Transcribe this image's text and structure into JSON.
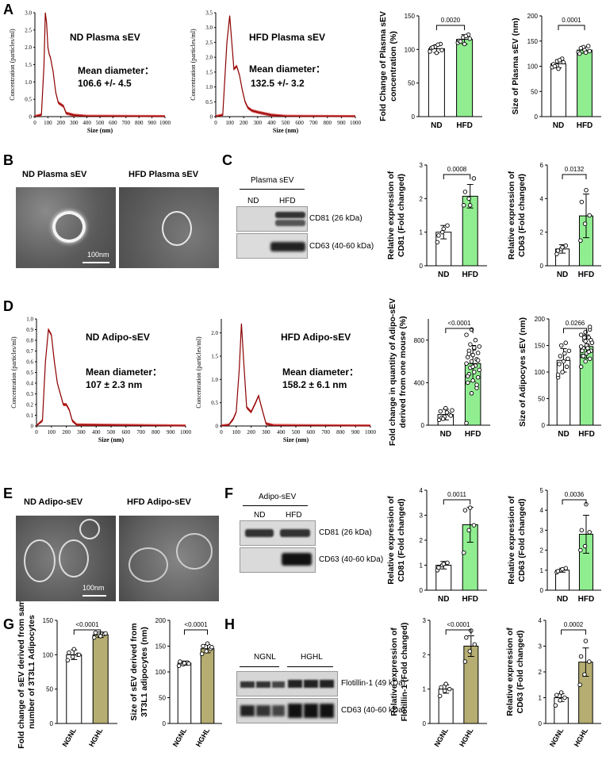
{
  "colors": {
    "green": "#90ee90",
    "olive": "#b5ad72",
    "red_curve": "#8b0000",
    "em_bg": "#6e6e6e"
  },
  "panel_letters": [
    "A",
    "B",
    "C",
    "D",
    "E",
    "F",
    "G",
    "H"
  ],
  "nta": {
    "nd_plasma": {
      "title": "ND Plasma sEV",
      "mean_label": "Mean diameter：",
      "mean_value": "106.6 +/- 4.5",
      "ylabel": "Concentration (particles/ml)",
      "xlabel": "Size  (nm)",
      "yticks": [
        "0",
        "0.5",
        "1.0",
        "1.5",
        "2.0",
        "2.5",
        "3.0"
      ],
      "xticks": [
        "0",
        "100",
        "200",
        "300",
        "400",
        "500",
        "600",
        "700",
        "800",
        "900",
        "1000"
      ],
      "ymax": 3.0,
      "curve": [
        [
          0,
          0
        ],
        [
          50,
          0.05
        ],
        [
          70,
          1.5
        ],
        [
          80,
          3.0
        ],
        [
          90,
          2.7
        ],
        [
          100,
          2.0
        ],
        [
          110,
          1.8
        ],
        [
          120,
          1.7
        ],
        [
          140,
          1.3
        ],
        [
          160,
          0.7
        ],
        [
          180,
          0.4
        ],
        [
          200,
          0.35
        ],
        [
          220,
          0.3
        ],
        [
          240,
          0.1
        ],
        [
          300,
          0.04
        ],
        [
          400,
          0.01
        ],
        [
          1000,
          0
        ]
      ]
    },
    "hfd_plasma": {
      "title": "HFD Plasma sEV",
      "mean_label": "Mean diameter：",
      "mean_value": "132.5 +/- 3.2",
      "ylabel": "Concentration (particles/ml)",
      "xlabel": "Size  (nm)",
      "yticks": [
        "0",
        "0.5",
        "1.0",
        "1.5",
        "2.0",
        "2.5",
        "3.0",
        "3.5"
      ],
      "xticks": [
        "0",
        "100",
        "200",
        "300",
        "400",
        "500",
        "600",
        "700",
        "800",
        "900",
        "1000"
      ],
      "ymax": 3.5,
      "curve": [
        [
          0,
          0
        ],
        [
          50,
          0.05
        ],
        [
          80,
          2.5
        ],
        [
          100,
          3.4
        ],
        [
          115,
          2.5
        ],
        [
          130,
          1.6
        ],
        [
          150,
          1.7
        ],
        [
          170,
          1.4
        ],
        [
          190,
          0.9
        ],
        [
          210,
          0.5
        ],
        [
          230,
          0.3
        ],
        [
          260,
          0.2
        ],
        [
          300,
          0.15
        ],
        [
          350,
          0.1
        ],
        [
          400,
          0.05
        ],
        [
          500,
          0.01
        ],
        [
          1000,
          0
        ]
      ]
    },
    "nd_adipo": {
      "title": "ND Adipo-sEV",
      "mean_label": "Mean diameter：",
      "mean_value": "107 ± 2.3 nm",
      "ylabel": "Concentration (particles/ml)",
      "xlabel": "Size  (nm)",
      "yticks": [
        "0",
        "0.1",
        "0.2",
        "0.3",
        "0.4",
        "0.5",
        "0.6",
        "0.7",
        "0.8",
        "0.9",
        "1.0"
      ],
      "xticks": [
        "0",
        "100",
        "200",
        "300",
        "400",
        "500",
        "600",
        "700",
        "800",
        "900",
        "1000"
      ],
      "ymax": 1.0,
      "curve": [
        [
          0,
          0
        ],
        [
          40,
          0.05
        ],
        [
          60,
          0.6
        ],
        [
          80,
          0.9
        ],
        [
          100,
          0.85
        ],
        [
          120,
          0.6
        ],
        [
          140,
          0.4
        ],
        [
          160,
          0.3
        ],
        [
          180,
          0.2
        ],
        [
          200,
          0.2
        ],
        [
          220,
          0.15
        ],
        [
          240,
          0.05
        ],
        [
          270,
          0.01
        ],
        [
          1000,
          0
        ]
      ]
    },
    "hfd_adipo": {
      "title": "HFD Adipo-sEV",
      "mean_label": "Mean diameter：",
      "mean_value": "158.2 ± 6.1 nm",
      "ylabel": "Concentration (particles/ml)",
      "xlabel": "Size  (nm)",
      "yticks": [
        "0",
        "0.5",
        "1.0",
        "1.5",
        "2.0"
      ],
      "xticks": [
        "0",
        "100",
        "200",
        "300",
        "400",
        "500",
        "600",
        "700",
        "800",
        "900",
        "1000"
      ],
      "ymax": 2.3,
      "curve": [
        [
          0,
          0
        ],
        [
          50,
          0.02
        ],
        [
          80,
          0.15
        ],
        [
          100,
          0.3
        ],
        [
          120,
          1.2
        ],
        [
          135,
          2.2
        ],
        [
          150,
          1.4
        ],
        [
          170,
          0.4
        ],
        [
          200,
          0.3
        ],
        [
          230,
          0.5
        ],
        [
          250,
          0.65
        ],
        [
          270,
          0.4
        ],
        [
          300,
          0.05
        ],
        [
          350,
          0.01
        ],
        [
          1000,
          0
        ]
      ]
    }
  },
  "em": {
    "b_left": "ND Plasma sEV",
    "b_right": "HFD Plasma sEV",
    "b_scale": "100nm",
    "e_left": "ND Adipo-sEV",
    "e_right": "HFD Adipo-sEV",
    "e_scale": "100nm"
  },
  "blots": {
    "c": {
      "header": "Plasma sEV",
      "lanes": [
        "ND",
        "HFD"
      ],
      "bands": [
        "CD81 (26 kDa)",
        "CD63 (40-60 kDa)"
      ]
    },
    "f": {
      "header": "Adipo-sEV",
      "lanes": [
        "ND",
        "HFD"
      ],
      "bands": [
        "CD81 (26 kDa)",
        "CD63 (40-60 kDa)"
      ]
    },
    "h": {
      "groups": [
        "NGNL",
        "HGHL"
      ],
      "bands": [
        "Flotillin-1 (49 kDa)",
        "CD63 (40-60 kDa)"
      ]
    }
  },
  "chart_data": [
    {
      "id": "a1",
      "type": "bar",
      "title": "",
      "categories": [
        "ND",
        "HFD"
      ],
      "values": [
        101,
        115
      ],
      "errors": [
        6,
        7
      ],
      "ylabel": "Fold Change of Plasma sEV concentration (%)",
      "ylim": [
        0,
        150
      ],
      "yticks": [
        "0",
        "50",
        "100",
        "150"
      ],
      "pvalue": "0.0020",
      "fill": "green",
      "points": [
        [
          97,
          104,
          108,
          102,
          95,
          99,
          103,
          107
        ],
        [
          110,
          118,
          122,
          113,
          108,
          116,
          112,
          120
        ]
      ]
    },
    {
      "id": "a2",
      "type": "bar",
      "title": "",
      "categories": [
        "ND",
        "HFD"
      ],
      "values": [
        105,
        132
      ],
      "errors": [
        8,
        6
      ],
      "ylabel": "Size of Plasma sEV (nm)",
      "ylim": [
        0,
        200
      ],
      "yticks": [
        "0",
        "50",
        "100",
        "150",
        "200"
      ],
      "pvalue": "0.0001",
      "fill": "green",
      "points": [
        [
          98,
          110,
          115,
          104,
          95,
          108,
          100,
          112
        ],
        [
          128,
          138,
          140,
          125,
          132,
          130,
          136,
          127
        ]
      ]
    },
    {
      "id": "c1",
      "type": "bar",
      "title": "",
      "categories": [
        "ND",
        "HFD"
      ],
      "values": [
        1.0,
        2.07
      ],
      "errors": [
        0.2,
        0.35
      ],
      "ylabel": "Relative expression of CD81 (Fold changed)",
      "ylim": [
        0,
        3
      ],
      "yticks": [
        "0",
        "1",
        "2",
        "3"
      ],
      "pvalue": "0.0008",
      "fill": "green",
      "points": [
        [
          0.7,
          1.0,
          1.2,
          0.9,
          1.1
        ],
        [
          1.8,
          2.0,
          2.6,
          2.2,
          1.8
        ]
      ]
    },
    {
      "id": "c2",
      "type": "bar",
      "title": "",
      "categories": [
        "ND",
        "HFD"
      ],
      "values": [
        1.0,
        2.97
      ],
      "errors": [
        0.25,
        1.3
      ],
      "ylabel": "Relative expression of CD63 (Fold changed)",
      "ylim": [
        0,
        6
      ],
      "yticks": [
        "0",
        "2",
        "4",
        "6"
      ],
      "pvalue": "0.0132",
      "fill": "green",
      "points": [
        [
          0.7,
          1.0,
          1.2,
          0.9,
          1.1
        ],
        [
          1.5,
          2.5,
          3.0,
          3.8,
          4.5
        ]
      ]
    },
    {
      "id": "d1",
      "type": "bar",
      "title": "",
      "categories": [
        "ND",
        "HFD"
      ],
      "values": [
        100,
        580
      ],
      "errors": [
        50,
        170
      ],
      "ylabel": "Fold change in quantity of Adipo-sEV derived from one mouse (%)",
      "ylim": [
        0,
        1000
      ],
      "yticks": [
        "0",
        "400",
        "800"
      ],
      "pvalue": "<0.0001",
      "fill": "green",
      "points": [
        [
          50,
          80,
          100,
          130,
          160,
          90,
          70,
          120,
          140,
          60
        ],
        [
          20,
          300,
          350,
          400,
          420,
          450,
          480,
          500,
          520,
          540,
          560,
          580,
          600,
          620,
          640,
          660,
          680,
          700,
          720,
          740,
          760,
          800,
          850,
          900,
          380,
          460,
          550,
          610,
          670,
          730
        ]
      ]
    },
    {
      "id": "d2",
      "type": "bar",
      "title": "",
      "categories": [
        "ND",
        "HFD"
      ],
      "values": [
        122,
        148
      ],
      "errors": [
        22,
        22
      ],
      "ylabel": "Size of Adipocyes sEV  (nm)",
      "ylim": [
        0,
        200
      ],
      "yticks": [
        "0",
        "50",
        "100",
        "150",
        "200"
      ],
      "pvalue": "0.0266",
      "fill": "green",
      "points": [
        [
          90,
          100,
          110,
          115,
          120,
          125,
          130,
          135,
          140,
          150,
          155,
          95
        ],
        [
          110,
          120,
          125,
          130,
          135,
          140,
          145,
          150,
          155,
          160,
          165,
          170,
          175,
          180,
          140,
          150,
          160,
          130,
          145,
          155,
          165,
          138,
          148,
          158,
          185
        ]
      ]
    },
    {
      "id": "f1",
      "type": "bar",
      "title": "",
      "categories": [
        "ND",
        "HFD"
      ],
      "values": [
        1.0,
        2.62
      ],
      "errors": [
        0.15,
        0.7
      ],
      "ylabel": "Relative expression of CD81 (Fold changed)",
      "ylim": [
        0,
        4
      ],
      "yticks": [
        "0",
        "1",
        "2",
        "3",
        "4"
      ],
      "pvalue": "0.0011",
      "fill": "green",
      "points": [
        [
          0.8,
          1.0,
          1.1,
          0.9,
          1.05
        ],
        [
          1.5,
          2.4,
          2.6,
          3.2,
          3.3
        ]
      ]
    },
    {
      "id": "f2",
      "type": "bar",
      "title": "",
      "categories": [
        "ND",
        "HFD"
      ],
      "values": [
        1.0,
        2.8
      ],
      "errors": [
        0.1,
        0.95
      ],
      "ylabel": "Relative expression of CD63 (Fold changed)",
      "ylim": [
        0,
        5
      ],
      "yticks": [
        "0",
        "1",
        "2",
        "3",
        "4",
        "5"
      ],
      "pvalue": "0.0036",
      "fill": "green",
      "points": [
        [
          0.9,
          1.0,
          1.1,
          0.95,
          1.05
        ],
        [
          2.0,
          2.2,
          2.9,
          3.0,
          4.3
        ]
      ]
    },
    {
      "id": "g1",
      "type": "bar",
      "title": "",
      "categories": [
        "NGNL",
        "HGHL"
      ],
      "values": [
        100,
        129
      ],
      "errors": [
        7,
        4
      ],
      "ylabel": "Fold change of sEV derived from same number of 3T3L1 Adipocytes",
      "ylim": [
        0,
        150
      ],
      "yticks": [
        "0",
        "50",
        "100",
        "150"
      ],
      "pvalue": "<0.0001",
      "fill": "olive",
      "points": [
        [
          92,
          97,
          100,
          103,
          108,
          100
        ],
        [
          125,
          128,
          130,
          132,
          127,
          131
        ]
      ]
    },
    {
      "id": "g2",
      "type": "bar",
      "title": "",
      "categories": [
        "NGNL",
        "HGHL"
      ],
      "values": [
        117,
        145
      ],
      "errors": [
        4,
        8
      ],
      "ylabel": "Size of sEV derived from 3T3L1 adipocytes (nm)",
      "ylim": [
        0,
        200
      ],
      "yticks": [
        "0",
        "50",
        "100",
        "150",
        "200"
      ],
      "pvalue": "<0.0001",
      "fill": "olive",
      "points": [
        [
          112,
          115,
          118,
          120,
          117,
          116
        ],
        [
          135,
          140,
          145,
          150,
          155,
          148
        ]
      ]
    },
    {
      "id": "h1",
      "type": "bar",
      "title": "",
      "categories": [
        "NGNL",
        "HGHL"
      ],
      "values": [
        1.0,
        2.25
      ],
      "errors": [
        0.12,
        0.3
      ],
      "ylabel": "Relative expression of Flotillin-1 (Fold changed)",
      "ylim": [
        0,
        3
      ],
      "yticks": [
        "0",
        "1",
        "2",
        "3"
      ],
      "pvalue": "<0.0001",
      "fill": "olive",
      "points": [
        [
          0.8,
          0.95,
          1.0,
          1.05,
          1.15
        ],
        [
          1.8,
          2.1,
          2.3,
          2.5,
          2.7
        ]
      ]
    },
    {
      "id": "h2",
      "type": "bar",
      "title": "",
      "categories": [
        "NGNL",
        "HGHL"
      ],
      "values": [
        1.0,
        2.38
      ],
      "errors": [
        0.15,
        0.55
      ],
      "ylabel": "Relative expression of CD63 (Fold changed)",
      "ylim": [
        0,
        4
      ],
      "yticks": [
        "0",
        "1",
        "2",
        "3",
        "4"
      ],
      "pvalue": "0.0002",
      "fill": "olive",
      "points": [
        [
          0.7,
          0.9,
          1.0,
          1.1,
          1.2
        ],
        [
          1.5,
          1.9,
          2.4,
          2.6,
          3.2
        ]
      ]
    }
  ]
}
